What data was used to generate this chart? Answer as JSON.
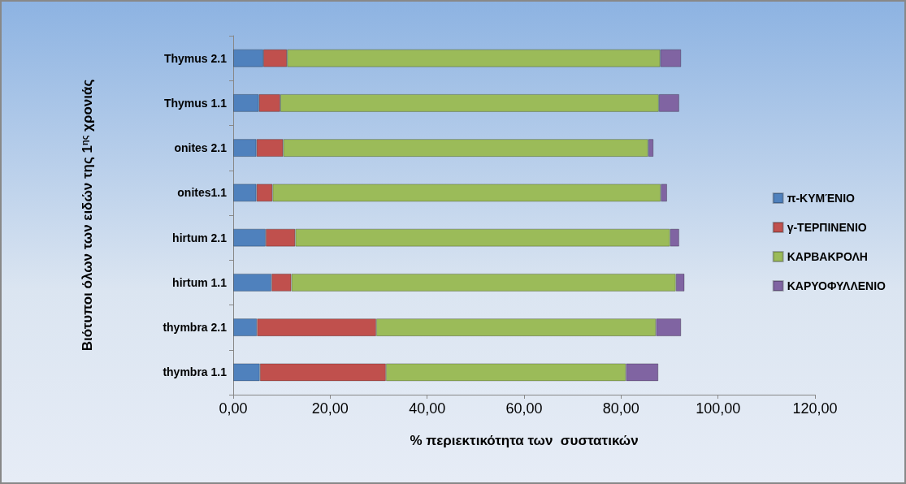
{
  "chart_data": {
    "type": "bar",
    "orientation": "horizontal",
    "stacked": true,
    "xlabel": "% περιεκτικότητα των  συστατικών",
    "ylabel": "Βιότυποι όλων των ειδών της 1$^{ης}$ χρονιάς",
    "categories": [
      "Thymus 2.1",
      "Thymus 1.1",
      "onites 2.1",
      "onites1.1",
      "hirtum 2.1",
      "hirtum 1.1",
      "thymbra 2.1",
      "thymbra 1.1"
    ],
    "series": [
      {
        "name": "π-ΚΥΜΈΝΙΟ",
        "color": "#4f81bd",
        "values": [
          6.2,
          5.3,
          4.8,
          4.8,
          6.7,
          7.9,
          4.9,
          5.5
        ]
      },
      {
        "name": "γ-ΤΕΡΠΙΝΕΝΙΟ",
        "color": "#c0504d",
        "values": [
          4.9,
          4.4,
          5.5,
          3.3,
          6.1,
          4.1,
          24.6,
          26.0
        ]
      },
      {
        "name": "ΚΑΡΒΑΚΡΟΛΗ",
        "color": "#9bbb59",
        "values": [
          77.0,
          78.1,
          75.3,
          80.1,
          77.3,
          79.3,
          57.7,
          49.5
        ]
      },
      {
        "name": "ΚΑΡΥΟΦΥΛΛΕΝΙΟ",
        "color": "#8064a2",
        "values": [
          4.3,
          4.2,
          1.1,
          1.3,
          1.9,
          1.8,
          5.2,
          6.7
        ]
      }
    ],
    "xlim": [
      0,
      120
    ],
    "xticks": [
      {
        "value": 0,
        "label": "0,00"
      },
      {
        "value": 20,
        "label": "20,00"
      },
      {
        "value": 40,
        "label": "40,00"
      },
      {
        "value": 60,
        "label": "60,00"
      },
      {
        "value": 80,
        "label": "80,00"
      },
      {
        "value": 100,
        "label": "100,00"
      },
      {
        "value": 120,
        "label": "120,00"
      }
    ],
    "grid": false,
    "legend": "right"
  }
}
